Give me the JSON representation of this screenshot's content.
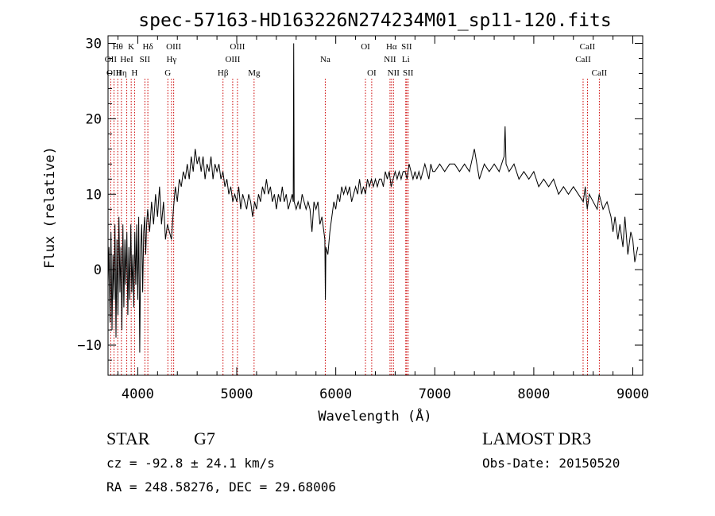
{
  "chart_data": {
    "type": "line",
    "title": "spec-57163-HD163226N274234M01_sp11-120.fits",
    "xlabel": "Wavelength (Å)",
    "ylabel": "Flux (relative)",
    "xlim": [
      3700,
      9100
    ],
    "ylim": [
      -14,
      31
    ],
    "xticks": [
      4000,
      5000,
      6000,
      7000,
      8000,
      9000
    ],
    "yticks": [
      -10,
      0,
      10,
      20,
      30
    ],
    "series": [
      {
        "name": "flux",
        "points": [
          [
            3700,
            -2
          ],
          [
            3710,
            3
          ],
          [
            3720,
            -7
          ],
          [
            3730,
            5
          ],
          [
            3740,
            -8
          ],
          [
            3750,
            2
          ],
          [
            3760,
            -4
          ],
          [
            3770,
            6
          ],
          [
            3780,
            -9
          ],
          [
            3790,
            4
          ],
          [
            3800,
            -6
          ],
          [
            3810,
            7
          ],
          [
            3820,
            -3
          ],
          [
            3830,
            3
          ],
          [
            3840,
            -8
          ],
          [
            3850,
            6
          ],
          [
            3860,
            -5
          ],
          [
            3870,
            4
          ],
          [
            3880,
            -2
          ],
          [
            3890,
            5
          ],
          [
            3900,
            -6
          ],
          [
            3910,
            3
          ],
          [
            3920,
            -4
          ],
          [
            3930,
            6
          ],
          [
            3940,
            -3
          ],
          [
            3950,
            2
          ],
          [
            3960,
            -5
          ],
          [
            3970,
            5
          ],
          [
            3980,
            -2
          ],
          [
            3990,
            6
          ],
          [
            4000,
            -4
          ],
          [
            4010,
            7
          ],
          [
            4020,
            -11
          ],
          [
            4030,
            3
          ],
          [
            4040,
            6
          ],
          [
            4050,
            -3
          ],
          [
            4060,
            5
          ],
          [
            4070,
            7
          ],
          [
            4080,
            2
          ],
          [
            4090,
            6
          ],
          [
            4100,
            8
          ],
          [
            4120,
            5
          ],
          [
            4140,
            9
          ],
          [
            4160,
            6
          ],
          [
            4180,
            10
          ],
          [
            4200,
            7
          ],
          [
            4220,
            11
          ],
          [
            4240,
            6
          ],
          [
            4260,
            9
          ],
          [
            4280,
            4
          ],
          [
            4300,
            6
          ],
          [
            4320,
            5
          ],
          [
            4340,
            4
          ],
          [
            4360,
            8
          ],
          [
            4380,
            11
          ],
          [
            4400,
            9
          ],
          [
            4420,
            12
          ],
          [
            4440,
            11
          ],
          [
            4460,
            13
          ],
          [
            4480,
            12
          ],
          [
            4500,
            14
          ],
          [
            4520,
            12
          ],
          [
            4540,
            15
          ],
          [
            4560,
            13
          ],
          [
            4580,
            16
          ],
          [
            4600,
            14
          ],
          [
            4620,
            15
          ],
          [
            4640,
            13
          ],
          [
            4660,
            15
          ],
          [
            4680,
            12
          ],
          [
            4700,
            14
          ],
          [
            4720,
            13
          ],
          [
            4740,
            15
          ],
          [
            4760,
            12
          ],
          [
            4780,
            14
          ],
          [
            4800,
            13
          ],
          [
            4820,
            14
          ],
          [
            4840,
            12
          ],
          [
            4860,
            13
          ],
          [
            4880,
            11
          ],
          [
            4900,
            12
          ],
          [
            4920,
            10
          ],
          [
            4940,
            11
          ],
          [
            4960,
            9
          ],
          [
            4980,
            10
          ],
          [
            5000,
            9
          ],
          [
            5020,
            11
          ],
          [
            5040,
            8
          ],
          [
            5060,
            10
          ],
          [
            5080,
            9
          ],
          [
            5100,
            8
          ],
          [
            5120,
            10
          ],
          [
            5140,
            9
          ],
          [
            5160,
            7
          ],
          [
            5180,
            9
          ],
          [
            5200,
            8
          ],
          [
            5220,
            10
          ],
          [
            5240,
            9
          ],
          [
            5260,
            11
          ],
          [
            5280,
            10
          ],
          [
            5300,
            12
          ],
          [
            5320,
            10
          ],
          [
            5340,
            11
          ],
          [
            5360,
            9
          ],
          [
            5380,
            10
          ],
          [
            5400,
            8
          ],
          [
            5420,
            10
          ],
          [
            5440,
            9
          ],
          [
            5460,
            11
          ],
          [
            5480,
            9
          ],
          [
            5500,
            10
          ],
          [
            5520,
            8
          ],
          [
            5540,
            9
          ],
          [
            5560,
            10
          ],
          [
            5570,
            9
          ],
          [
            5575,
            30
          ],
          [
            5580,
            9
          ],
          [
            5600,
            8
          ],
          [
            5620,
            9
          ],
          [
            5640,
            8
          ],
          [
            5660,
            10
          ],
          [
            5680,
            9
          ],
          [
            5700,
            8
          ],
          [
            5720,
            9
          ],
          [
            5740,
            8
          ],
          [
            5760,
            5
          ],
          [
            5780,
            9
          ],
          [
            5800,
            8
          ],
          [
            5820,
            9
          ],
          [
            5840,
            6
          ],
          [
            5860,
            7
          ],
          [
            5880,
            5
          ],
          [
            5890,
            4
          ],
          [
            5895,
            -4
          ],
          [
            5900,
            3
          ],
          [
            5920,
            2
          ],
          [
            5940,
            5
          ],
          [
            5960,
            7
          ],
          [
            5980,
            9
          ],
          [
            6000,
            8
          ],
          [
            6020,
            10
          ],
          [
            6040,
            9
          ],
          [
            6060,
            11
          ],
          [
            6080,
            10
          ],
          [
            6100,
            11
          ],
          [
            6120,
            10
          ],
          [
            6140,
            11
          ],
          [
            6160,
            9
          ],
          [
            6180,
            10
          ],
          [
            6200,
            11
          ],
          [
            6220,
            10
          ],
          [
            6240,
            12
          ],
          [
            6260,
            10
          ],
          [
            6280,
            11
          ],
          [
            6300,
            10
          ],
          [
            6320,
            12
          ],
          [
            6340,
            11
          ],
          [
            6360,
            12
          ],
          [
            6380,
            11
          ],
          [
            6400,
            12
          ],
          [
            6420,
            11
          ],
          [
            6440,
            12
          ],
          [
            6460,
            12
          ],
          [
            6480,
            11
          ],
          [
            6500,
            13
          ],
          [
            6520,
            12
          ],
          [
            6540,
            13
          ],
          [
            6560,
            11
          ],
          [
            6580,
            12
          ],
          [
            6600,
            13
          ],
          [
            6620,
            12
          ],
          [
            6640,
            13
          ],
          [
            6660,
            12
          ],
          [
            6680,
            13
          ],
          [
            6700,
            13
          ],
          [
            6720,
            12
          ],
          [
            6740,
            14
          ],
          [
            6760,
            13
          ],
          [
            6780,
            12
          ],
          [
            6800,
            13
          ],
          [
            6820,
            12
          ],
          [
            6840,
            13
          ],
          [
            6860,
            12
          ],
          [
            6880,
            13
          ],
          [
            6900,
            14
          ],
          [
            6920,
            13
          ],
          [
            6940,
            12
          ],
          [
            6960,
            14
          ],
          [
            6980,
            13
          ],
          [
            7000,
            13
          ],
          [
            7050,
            14
          ],
          [
            7100,
            13
          ],
          [
            7150,
            14
          ],
          [
            7200,
            14
          ],
          [
            7250,
            13
          ],
          [
            7300,
            14
          ],
          [
            7350,
            13
          ],
          [
            7400,
            16
          ],
          [
            7450,
            12
          ],
          [
            7500,
            14
          ],
          [
            7550,
            13
          ],
          [
            7600,
            14
          ],
          [
            7650,
            13
          ],
          [
            7700,
            15
          ],
          [
            7710,
            19
          ],
          [
            7720,
            14
          ],
          [
            7750,
            13
          ],
          [
            7800,
            14
          ],
          [
            7850,
            12
          ],
          [
            7900,
            13
          ],
          [
            7950,
            12
          ],
          [
            8000,
            13
          ],
          [
            8050,
            11
          ],
          [
            8100,
            12
          ],
          [
            8150,
            11
          ],
          [
            8200,
            12
          ],
          [
            8250,
            10
          ],
          [
            8300,
            11
          ],
          [
            8350,
            10
          ],
          [
            8400,
            11
          ],
          [
            8450,
            10
          ],
          [
            8500,
            9
          ],
          [
            8520,
            11
          ],
          [
            8540,
            8
          ],
          [
            8560,
            10
          ],
          [
            8600,
            9
          ],
          [
            8640,
            8
          ],
          [
            8660,
            10
          ],
          [
            8700,
            8
          ],
          [
            8740,
            9
          ],
          [
            8780,
            7
          ],
          [
            8800,
            5
          ],
          [
            8820,
            7
          ],
          [
            8850,
            4
          ],
          [
            8870,
            6
          ],
          [
            8900,
            3
          ],
          [
            8920,
            7
          ],
          [
            8950,
            2
          ],
          [
            8980,
            5
          ],
          [
            9000,
            4
          ],
          [
            9020,
            1
          ],
          [
            9050,
            3
          ]
        ]
      }
    ],
    "annotations": [
      {
        "label": "OII",
        "wave": 3727,
        "tier": 2
      },
      {
        "label": "OIII",
        "wave": 3760,
        "tier": 3
      },
      {
        "label": "Hθ",
        "wave": 3798,
        "tier": 1
      },
      {
        "label": "Hη",
        "wave": 3835,
        "tier": 3
      },
      {
        "label": "HeI",
        "wave": 3889,
        "tier": 2
      },
      {
        "label": "K",
        "wave": 3934,
        "tier": 1
      },
      {
        "label": "H",
        "wave": 3968,
        "tier": 3
      },
      {
        "label": "SII",
        "wave": 4072,
        "tier": 2
      },
      {
        "label": "Hδ",
        "wave": 4102,
        "tier": 1
      },
      {
        "label": "G",
        "wave": 4304,
        "tier": 3
      },
      {
        "label": "Hγ",
        "wave": 4341,
        "tier": 2
      },
      {
        "label": "OIII",
        "wave": 4363,
        "tier": 1
      },
      {
        "label": "Hβ",
        "wave": 4861,
        "tier": 3
      },
      {
        "label": "OIII",
        "wave": 4959,
        "tier": 2
      },
      {
        "label": "OIII",
        "wave": 5007,
        "tier": 1
      },
      {
        "label": "Mg",
        "wave": 5175,
        "tier": 3
      },
      {
        "label": "Na",
        "wave": 5894,
        "tier": 2
      },
      {
        "label": "OI",
        "wave": 6300,
        "tier": 1
      },
      {
        "label": "OI",
        "wave": 6363,
        "tier": 3
      },
      {
        "label": "NII",
        "wave": 6548,
        "tier": 2
      },
      {
        "label": "Hα",
        "wave": 6563,
        "tier": 1
      },
      {
        "label": "NII",
        "wave": 6583,
        "tier": 3
      },
      {
        "label": "Li",
        "wave": 6707,
        "tier": 2
      },
      {
        "label": "SII",
        "wave": 6716,
        "tier": 1
      },
      {
        "label": "SII",
        "wave": 6731,
        "tier": 3
      },
      {
        "label": "CaII",
        "wave": 8498,
        "tier": 2
      },
      {
        "label": "CaII",
        "wave": 8542,
        "tier": 1
      },
      {
        "label": "CaII",
        "wave": 8662,
        "tier": 3
      }
    ],
    "line_color": "#000000",
    "marker_color": "#cc0000"
  },
  "info": {
    "object_type": "STAR",
    "subclass": "G7",
    "survey": "LAMOST DR3",
    "redshift": "cz = -92.8 ± 24.1 km/s",
    "obs_date": "Obs-Date: 20150520",
    "coords": "RA = 248.58276, DEC =  29.68006"
  }
}
